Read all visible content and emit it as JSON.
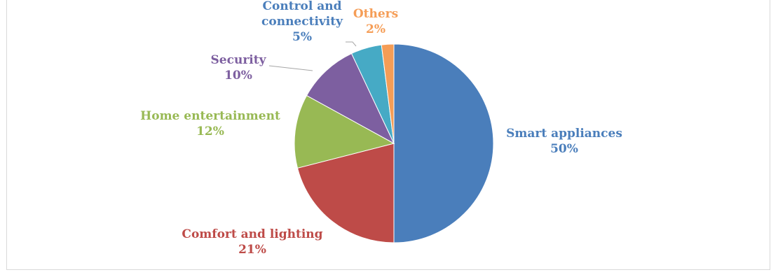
{
  "chart_data": {
    "type": "pie",
    "title": "",
    "start_angle_deg": 0,
    "direction": "clockwise",
    "slices": [
      {
        "name": "Smart appliances",
        "value": 50,
        "label": "50%",
        "color": "#4a7ebb"
      },
      {
        "name": "Comfort and lighting",
        "value": 21,
        "label": "21%",
        "color": "#be4b48"
      },
      {
        "name": "Home entertainment",
        "value": 12,
        "label": "12%",
        "color": "#98b954"
      },
      {
        "name": "Security",
        "value": 10,
        "label": "10%",
        "color": "#7d5fa0"
      },
      {
        "name": "Control and connectivity",
        "value": 5,
        "label": "5%",
        "color": "#46aac5"
      },
      {
        "name": "Others",
        "value": 2,
        "label": "2%",
        "color": "#f59d56"
      }
    ],
    "label_colors": {
      "Smart appliances": "#4a7ebb",
      "Comfort and lighting": "#be4b48",
      "Home entertainment": "#98b954",
      "Security": "#7d5fa0",
      "Control and connectivity": "#4a7ebb",
      "Others": "#f59d56"
    },
    "legend": "none"
  }
}
